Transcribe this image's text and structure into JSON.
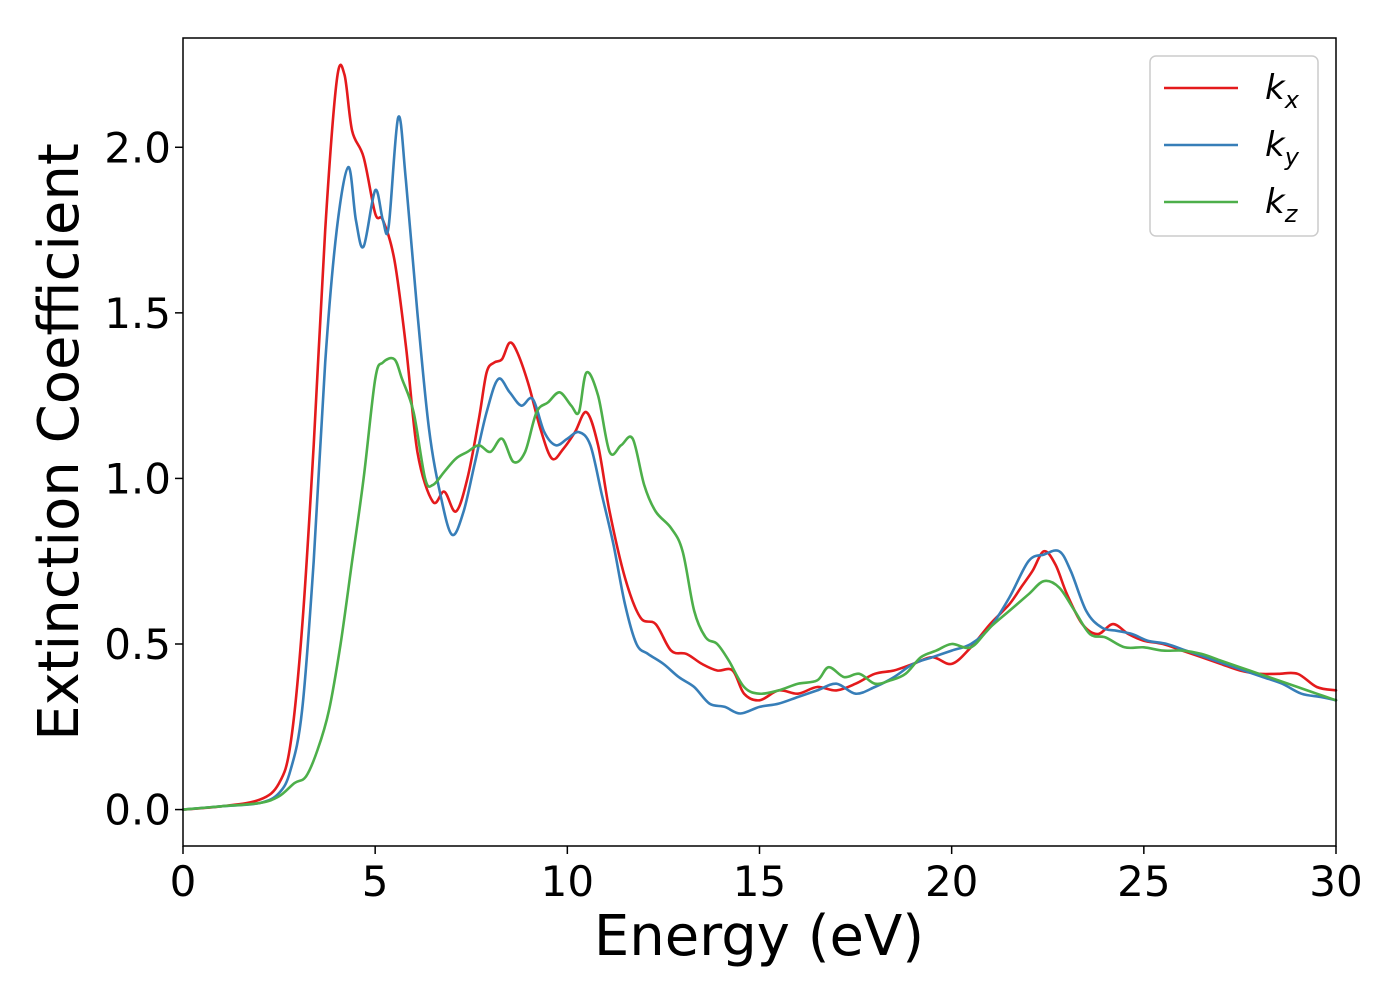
{
  "chart_data": {
    "type": "line",
    "title": "",
    "xlabel": "Energy (eV)",
    "ylabel": "Extinction Coefficient",
    "xlim": [
      0,
      30
    ],
    "ylim": [
      -0.11,
      2.33
    ],
    "xticks": [
      0,
      5,
      10,
      15,
      20,
      25,
      30
    ],
    "xtick_labels": [
      "0",
      "5",
      "10",
      "15",
      "20",
      "25",
      "30"
    ],
    "yticks": [
      0.0,
      0.5,
      1.0,
      1.5,
      2.0
    ],
    "ytick_labels": [
      "0.0",
      "0.5",
      "1.0",
      "1.5",
      "2.0"
    ],
    "grid": false,
    "legend_position": "top-right",
    "series": [
      {
        "name": "k",
        "subscript": "x",
        "color": "#e41a1c",
        "x": [
          0,
          1,
          2,
          2.5,
          2.8,
          3.1,
          3.4,
          3.7,
          4.0,
          4.2,
          4.4,
          4.7,
          5.0,
          5.2,
          5.5,
          5.8,
          6.1,
          6.5,
          6.8,
          7.1,
          7.4,
          7.7,
          7.9,
          8.1,
          8.3,
          8.5,
          8.7,
          9.0,
          9.3,
          9.6,
          9.9,
          10.2,
          10.5,
          10.8,
          11.1,
          11.5,
          11.9,
          12.3,
          12.7,
          13.1,
          13.5,
          13.9,
          14.3,
          14.6,
          15.0,
          15.5,
          16.0,
          16.5,
          17.0,
          17.5,
          18.0,
          18.5,
          19.0,
          19.5,
          20.0,
          20.5,
          21.0,
          21.5,
          21.8,
          22.1,
          22.4,
          22.7,
          23.0,
          23.4,
          23.8,
          24.2,
          24.6,
          25.0,
          25.5,
          26.0,
          26.5,
          27.0,
          27.5,
          28.0,
          28.5,
          29.0,
          29.5,
          30.0
        ],
        "y": [
          0.0,
          0.01,
          0.03,
          0.08,
          0.2,
          0.55,
          1.1,
          1.75,
          2.2,
          2.22,
          2.05,
          1.97,
          1.8,
          1.78,
          1.66,
          1.4,
          1.08,
          0.93,
          0.96,
          0.9,
          1.0,
          1.18,
          1.32,
          1.35,
          1.36,
          1.41,
          1.38,
          1.28,
          1.15,
          1.06,
          1.09,
          1.14,
          1.2,
          1.1,
          0.9,
          0.7,
          0.58,
          0.56,
          0.48,
          0.47,
          0.44,
          0.42,
          0.42,
          0.35,
          0.33,
          0.36,
          0.35,
          0.37,
          0.36,
          0.38,
          0.41,
          0.42,
          0.44,
          0.46,
          0.44,
          0.49,
          0.56,
          0.62,
          0.67,
          0.72,
          0.78,
          0.74,
          0.65,
          0.56,
          0.53,
          0.56,
          0.53,
          0.51,
          0.5,
          0.48,
          0.46,
          0.44,
          0.42,
          0.41,
          0.41,
          0.41,
          0.37,
          0.36
        ]
      },
      {
        "name": "k",
        "subscript": "y",
        "color": "#377eb8",
        "x": [
          0,
          1,
          2,
          2.5,
          2.8,
          3.1,
          3.4,
          3.7,
          4.0,
          4.3,
          4.5,
          4.7,
          5.0,
          5.2,
          5.35,
          5.6,
          5.8,
          6.1,
          6.4,
          6.7,
          7.0,
          7.3,
          7.6,
          7.9,
          8.2,
          8.5,
          8.8,
          9.1,
          9.4,
          9.7,
          10.0,
          10.3,
          10.6,
          10.9,
          11.2,
          11.5,
          11.8,
          12.1,
          12.5,
          12.9,
          13.3,
          13.7,
          14.1,
          14.5,
          15.0,
          15.5,
          16.0,
          16.5,
          17.0,
          17.5,
          18.0,
          18.5,
          19.0,
          19.5,
          20.0,
          20.5,
          21.0,
          21.5,
          22.0,
          22.4,
          22.8,
          23.1,
          23.5,
          23.9,
          24.3,
          24.7,
          25.1,
          25.6,
          26.1,
          26.6,
          27.1,
          27.6,
          28.1,
          28.6,
          29.1,
          29.6,
          30.0
        ],
        "y": [
          0.0,
          0.01,
          0.02,
          0.05,
          0.12,
          0.3,
          0.75,
          1.35,
          1.75,
          1.94,
          1.78,
          1.7,
          1.87,
          1.78,
          1.76,
          2.09,
          1.9,
          1.5,
          1.15,
          0.95,
          0.83,
          0.9,
          1.05,
          1.2,
          1.3,
          1.26,
          1.22,
          1.24,
          1.14,
          1.1,
          1.12,
          1.14,
          1.1,
          0.95,
          0.8,
          0.62,
          0.5,
          0.47,
          0.44,
          0.4,
          0.37,
          0.32,
          0.31,
          0.29,
          0.31,
          0.32,
          0.34,
          0.36,
          0.38,
          0.35,
          0.37,
          0.4,
          0.44,
          0.46,
          0.48,
          0.5,
          0.55,
          0.64,
          0.75,
          0.77,
          0.78,
          0.72,
          0.6,
          0.55,
          0.54,
          0.53,
          0.51,
          0.5,
          0.48,
          0.46,
          0.44,
          0.42,
          0.4,
          0.38,
          0.35,
          0.34,
          0.33
        ]
      },
      {
        "name": "k",
        "subscript": "z",
        "color": "#4daf4a",
        "x": [
          0,
          1,
          2,
          2.5,
          2.9,
          3.2,
          3.5,
          3.8,
          4.1,
          4.4,
          4.7,
          5.0,
          5.2,
          5.5,
          5.7,
          6.0,
          6.3,
          6.5,
          6.8,
          7.1,
          7.4,
          7.7,
          8.0,
          8.3,
          8.6,
          8.9,
          9.2,
          9.5,
          9.8,
          10.1,
          10.3,
          10.5,
          10.8,
          11.1,
          11.4,
          11.7,
          12.0,
          12.3,
          12.7,
          13.0,
          13.3,
          13.6,
          13.9,
          14.2,
          14.6,
          15.0,
          15.5,
          16.0,
          16.5,
          16.8,
          17.2,
          17.6,
          18.0,
          18.4,
          18.8,
          19.2,
          19.6,
          20.0,
          20.5,
          21.0,
          21.5,
          22.0,
          22.4,
          22.8,
          23.2,
          23.6,
          24.0,
          24.5,
          25.0,
          25.5,
          26.0,
          26.5,
          27.0,
          27.5,
          28.0,
          28.5,
          29.0,
          29.5,
          30.0
        ],
        "y": [
          0.0,
          0.01,
          0.02,
          0.04,
          0.08,
          0.1,
          0.18,
          0.3,
          0.5,
          0.75,
          1.0,
          1.3,
          1.35,
          1.36,
          1.3,
          1.2,
          1.0,
          0.98,
          1.02,
          1.06,
          1.08,
          1.1,
          1.08,
          1.12,
          1.05,
          1.08,
          1.2,
          1.23,
          1.26,
          1.22,
          1.2,
          1.32,
          1.25,
          1.08,
          1.1,
          1.12,
          0.98,
          0.9,
          0.85,
          0.78,
          0.6,
          0.52,
          0.5,
          0.45,
          0.37,
          0.35,
          0.36,
          0.38,
          0.39,
          0.43,
          0.4,
          0.41,
          0.38,
          0.39,
          0.41,
          0.46,
          0.48,
          0.5,
          0.49,
          0.55,
          0.6,
          0.65,
          0.69,
          0.67,
          0.6,
          0.53,
          0.52,
          0.49,
          0.49,
          0.48,
          0.48,
          0.47,
          0.45,
          0.43,
          0.41,
          0.39,
          0.37,
          0.35,
          0.33
        ]
      }
    ]
  }
}
